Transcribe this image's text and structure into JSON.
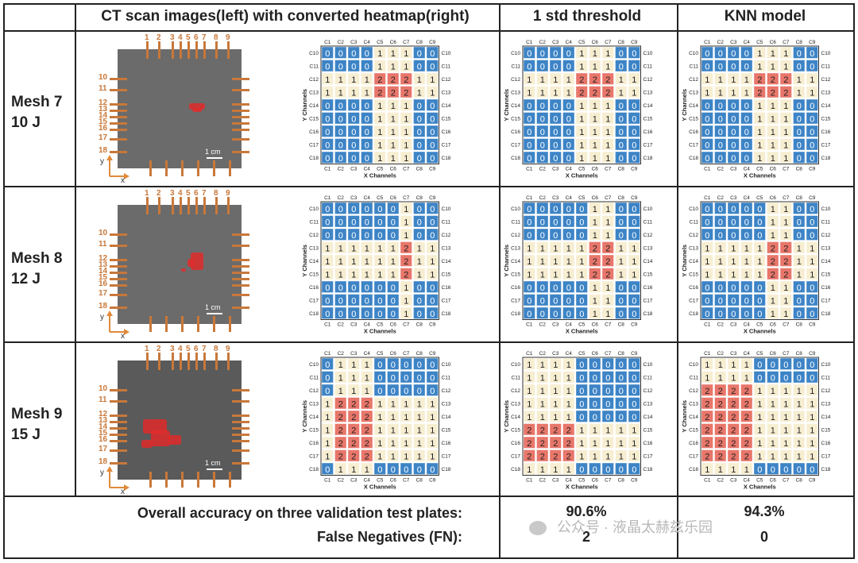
{
  "headers": {
    "col1": "CT scan images(left) with converted heatmap(right)",
    "col2": "1 std threshold",
    "col3": "KNN model"
  },
  "rows": [
    {
      "mesh": "Mesh 7",
      "energy": "10 J"
    },
    {
      "mesh": "Mesh 8",
      "energy": "12 J"
    },
    {
      "mesh": "Mesh 9",
      "energy": "15 J"
    }
  ],
  "ct_labels": {
    "top_pins": [
      "1",
      "2",
      "3",
      "4",
      "5",
      "6",
      "7",
      "8",
      "9"
    ],
    "side_pins": [
      "10",
      "11",
      "12",
      "13",
      "14",
      "15",
      "16",
      "17",
      "18"
    ],
    "scale": "1 cm",
    "axis_y": "y",
    "axis_x": "x"
  },
  "heatmap_labels": {
    "cols": [
      "C1",
      "C2",
      "C3",
      "C4",
      "C5",
      "C6",
      "C7",
      "C8",
      "C9"
    ],
    "rows": [
      "C10",
      "C11",
      "C12",
      "C13",
      "C14",
      "C15",
      "C16",
      "C17",
      "C18"
    ],
    "xlabel": "X Channels",
    "ylabel": "Y Channels"
  },
  "colors": {
    "v0": "#3d84c6",
    "v1": "#f7eed2",
    "v2": "#e8766a",
    "pin": "#c8783a",
    "damage": "#e02a2a"
  },
  "chart_data": [
    {
      "type": "heatmap",
      "row": "Mesh 7",
      "panel": "converted heatmap",
      "matrix": [
        [
          0,
          0,
          0,
          0,
          1,
          1,
          1,
          0,
          0
        ],
        [
          0,
          0,
          0,
          0,
          1,
          1,
          1,
          0,
          0
        ],
        [
          1,
          1,
          1,
          1,
          2,
          2,
          2,
          1,
          1
        ],
        [
          1,
          1,
          1,
          1,
          2,
          2,
          2,
          1,
          1
        ],
        [
          0,
          0,
          0,
          0,
          1,
          1,
          1,
          0,
          0
        ],
        [
          0,
          0,
          0,
          0,
          1,
          1,
          1,
          0,
          0
        ],
        [
          0,
          0,
          0,
          0,
          1,
          1,
          1,
          0,
          0
        ],
        [
          0,
          0,
          0,
          0,
          1,
          1,
          1,
          0,
          0
        ],
        [
          0,
          0,
          0,
          0,
          1,
          1,
          1,
          0,
          0
        ]
      ]
    },
    {
      "type": "heatmap",
      "row": "Mesh 7",
      "panel": "1 std threshold",
      "matrix": [
        [
          0,
          0,
          0,
          0,
          1,
          1,
          1,
          0,
          0
        ],
        [
          0,
          0,
          0,
          0,
          1,
          1,
          1,
          0,
          0
        ],
        [
          1,
          1,
          1,
          1,
          2,
          2,
          2,
          1,
          1
        ],
        [
          1,
          1,
          1,
          1,
          2,
          2,
          2,
          1,
          1
        ],
        [
          0,
          0,
          0,
          0,
          1,
          1,
          1,
          0,
          0
        ],
        [
          0,
          0,
          0,
          0,
          1,
          1,
          1,
          0,
          0
        ],
        [
          0,
          0,
          0,
          0,
          1,
          1,
          1,
          0,
          0
        ],
        [
          0,
          0,
          0,
          0,
          1,
          1,
          1,
          0,
          0
        ],
        [
          0,
          0,
          0,
          0,
          1,
          1,
          1,
          0,
          0
        ]
      ]
    },
    {
      "type": "heatmap",
      "row": "Mesh 7",
      "panel": "KNN model",
      "matrix": [
        [
          0,
          0,
          0,
          0,
          1,
          1,
          1,
          0,
          0
        ],
        [
          0,
          0,
          0,
          0,
          1,
          1,
          1,
          0,
          0
        ],
        [
          1,
          1,
          1,
          1,
          2,
          2,
          2,
          1,
          1
        ],
        [
          1,
          1,
          1,
          1,
          2,
          2,
          2,
          1,
          1
        ],
        [
          0,
          0,
          0,
          0,
          1,
          1,
          1,
          0,
          0
        ],
        [
          0,
          0,
          0,
          0,
          1,
          1,
          1,
          0,
          0
        ],
        [
          0,
          0,
          0,
          0,
          1,
          1,
          1,
          0,
          0
        ],
        [
          0,
          0,
          0,
          0,
          1,
          1,
          1,
          0,
          0
        ],
        [
          0,
          0,
          0,
          0,
          1,
          1,
          1,
          0,
          0
        ]
      ]
    },
    {
      "type": "heatmap",
      "row": "Mesh 8",
      "panel": "converted heatmap",
      "matrix": [
        [
          0,
          0,
          0,
          0,
          0,
          0,
          1,
          0,
          0
        ],
        [
          0,
          0,
          0,
          0,
          0,
          0,
          1,
          0,
          0
        ],
        [
          0,
          0,
          0,
          0,
          0,
          0,
          1,
          0,
          0
        ],
        [
          1,
          1,
          1,
          1,
          1,
          1,
          2,
          1,
          1
        ],
        [
          1,
          1,
          1,
          1,
          1,
          1,
          2,
          1,
          1
        ],
        [
          1,
          1,
          1,
          1,
          1,
          1,
          2,
          1,
          1
        ],
        [
          0,
          0,
          0,
          0,
          0,
          0,
          1,
          0,
          0
        ],
        [
          0,
          0,
          0,
          0,
          0,
          0,
          1,
          0,
          0
        ],
        [
          0,
          0,
          0,
          0,
          0,
          0,
          1,
          0,
          0
        ]
      ]
    },
    {
      "type": "heatmap",
      "row": "Mesh 8",
      "panel": "1 std threshold",
      "matrix": [
        [
          0,
          0,
          0,
          0,
          0,
          1,
          1,
          0,
          0
        ],
        [
          0,
          0,
          0,
          0,
          0,
          1,
          1,
          0,
          0
        ],
        [
          0,
          0,
          0,
          0,
          0,
          1,
          1,
          0,
          0
        ],
        [
          1,
          1,
          1,
          1,
          1,
          2,
          2,
          1,
          1
        ],
        [
          1,
          1,
          1,
          1,
          1,
          2,
          2,
          1,
          1
        ],
        [
          1,
          1,
          1,
          1,
          1,
          2,
          2,
          1,
          1
        ],
        [
          0,
          0,
          0,
          0,
          0,
          1,
          1,
          0,
          0
        ],
        [
          0,
          0,
          0,
          0,
          0,
          1,
          1,
          0,
          0
        ],
        [
          0,
          0,
          0,
          0,
          0,
          1,
          1,
          0,
          0
        ]
      ]
    },
    {
      "type": "heatmap",
      "row": "Mesh 8",
      "panel": "KNN model",
      "matrix": [
        [
          0,
          0,
          0,
          0,
          0,
          1,
          1,
          0,
          0
        ],
        [
          0,
          0,
          0,
          0,
          0,
          1,
          1,
          0,
          0
        ],
        [
          0,
          0,
          0,
          0,
          0,
          1,
          1,
          0,
          0
        ],
        [
          1,
          1,
          1,
          1,
          1,
          2,
          2,
          1,
          1
        ],
        [
          1,
          1,
          1,
          1,
          1,
          2,
          2,
          1,
          1
        ],
        [
          1,
          1,
          1,
          1,
          1,
          2,
          2,
          1,
          1
        ],
        [
          0,
          0,
          0,
          0,
          0,
          1,
          1,
          0,
          0
        ],
        [
          0,
          0,
          0,
          0,
          0,
          1,
          1,
          0,
          0
        ],
        [
          0,
          0,
          0,
          0,
          0,
          1,
          1,
          0,
          0
        ]
      ]
    },
    {
      "type": "heatmap",
      "row": "Mesh 9",
      "panel": "converted heatmap",
      "matrix": [
        [
          0,
          1,
          1,
          1,
          0,
          0,
          0,
          0,
          0
        ],
        [
          0,
          1,
          1,
          1,
          0,
          0,
          0,
          0,
          0
        ],
        [
          0,
          1,
          1,
          1,
          0,
          0,
          0,
          0,
          0
        ],
        [
          1,
          2,
          2,
          2,
          1,
          1,
          1,
          1,
          1
        ],
        [
          1,
          2,
          2,
          2,
          1,
          1,
          1,
          1,
          1
        ],
        [
          1,
          2,
          2,
          2,
          1,
          1,
          1,
          1,
          1
        ],
        [
          1,
          2,
          2,
          2,
          1,
          1,
          1,
          1,
          1
        ],
        [
          1,
          2,
          2,
          2,
          1,
          1,
          1,
          1,
          1
        ],
        [
          0,
          1,
          1,
          1,
          0,
          0,
          0,
          0,
          0
        ]
      ]
    },
    {
      "type": "heatmap",
      "row": "Mesh 9",
      "panel": "1 std threshold",
      "matrix": [
        [
          1,
          1,
          1,
          1,
          0,
          0,
          0,
          0,
          0
        ],
        [
          1,
          1,
          1,
          1,
          0,
          0,
          0,
          0,
          0
        ],
        [
          1,
          1,
          1,
          1,
          0,
          0,
          0,
          0,
          0
        ],
        [
          1,
          1,
          1,
          1,
          0,
          0,
          0,
          0,
          0
        ],
        [
          1,
          1,
          1,
          1,
          0,
          0,
          0,
          0,
          0
        ],
        [
          2,
          2,
          2,
          2,
          1,
          1,
          1,
          1,
          1
        ],
        [
          2,
          2,
          2,
          2,
          1,
          1,
          1,
          1,
          1
        ],
        [
          2,
          2,
          2,
          2,
          1,
          1,
          1,
          1,
          1
        ],
        [
          1,
          1,
          1,
          1,
          0,
          0,
          0,
          0,
          0
        ]
      ]
    },
    {
      "type": "heatmap",
      "row": "Mesh 9",
      "panel": "KNN model",
      "matrix": [
        [
          1,
          1,
          1,
          1,
          0,
          0,
          0,
          0,
          0
        ],
        [
          1,
          1,
          1,
          1,
          0,
          0,
          0,
          0,
          0
        ],
        [
          2,
          2,
          2,
          2,
          1,
          1,
          1,
          1,
          1
        ],
        [
          2,
          2,
          2,
          2,
          1,
          1,
          1,
          1,
          1
        ],
        [
          2,
          2,
          2,
          2,
          1,
          1,
          1,
          1,
          1
        ],
        [
          2,
          2,
          2,
          2,
          1,
          1,
          1,
          1,
          1
        ],
        [
          2,
          2,
          2,
          2,
          1,
          1,
          1,
          1,
          1
        ],
        [
          2,
          2,
          2,
          2,
          1,
          1,
          1,
          1,
          1
        ],
        [
          1,
          1,
          1,
          1,
          0,
          0,
          0,
          0,
          0
        ]
      ]
    }
  ],
  "footer": {
    "accuracy_label": "Overall accuracy on three validation test plates:",
    "fn_label": "False Negatives (FN):",
    "std_accuracy": "90.6%",
    "std_fn": "2",
    "knn_accuracy": "94.3%",
    "knn_fn": "0"
  },
  "watermark": "公众号 · 液晶太赫兹乐园"
}
